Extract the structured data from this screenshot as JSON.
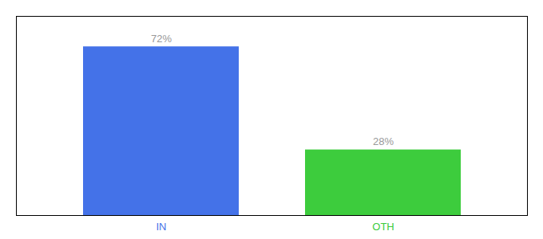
{
  "chart_data": {
    "type": "bar",
    "categories": [
      "IN",
      "OTH"
    ],
    "values": [
      72,
      28
    ],
    "value_labels": [
      "72%",
      "28%"
    ],
    "colors": [
      "#4472e8",
      "#3dcc3d"
    ],
    "ylim": [
      0,
      85
    ],
    "yticks": [],
    "data_labels": true,
    "tick_labels": "x",
    "grid": false
  }
}
